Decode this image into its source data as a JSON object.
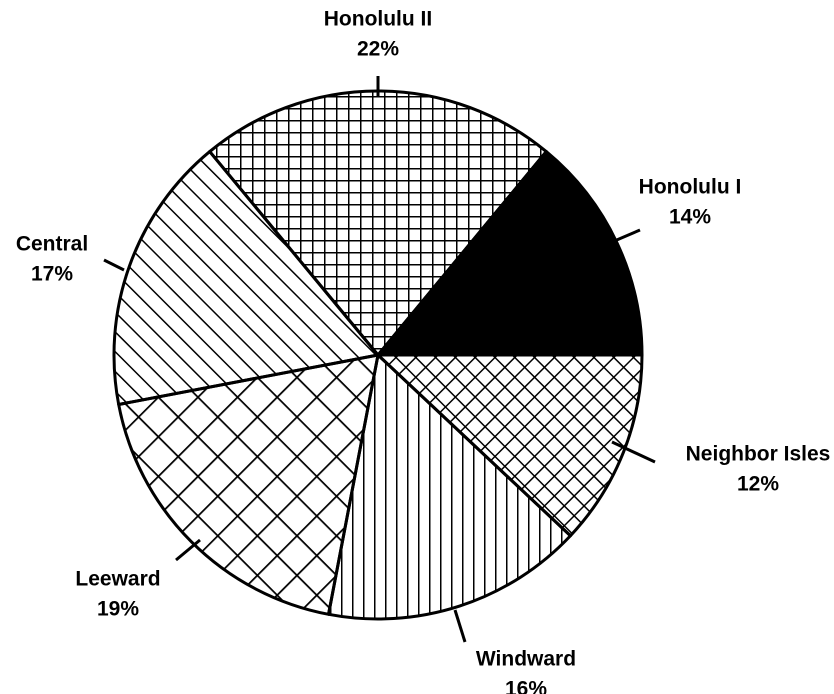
{
  "chart_data": {
    "type": "pie",
    "categories": [
      "Honolulu II",
      "Honolulu I",
      "Neighbor Isles",
      "Windward",
      "Leeward",
      "Central"
    ],
    "values": [
      22,
      14,
      12,
      16,
      19,
      17
    ],
    "value_labels": [
      "22%",
      "14%",
      "12%",
      "16%",
      "19%",
      "17%"
    ]
  }
}
